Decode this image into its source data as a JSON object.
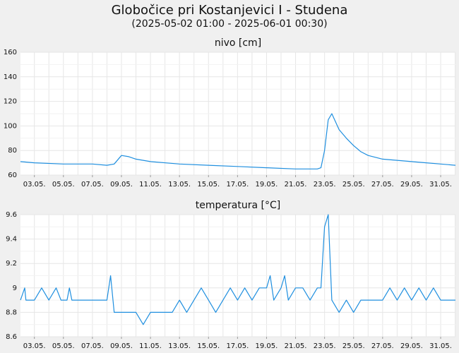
{
  "title": "Globočice pri Kostanjevici I - Studena",
  "subtitle": "(2025-05-02 01:00 - 2025-06-01 00:30)",
  "colors": {
    "series": "#1f8fdf",
    "plot_bg": "#ffffff",
    "page_bg": "#f0f0f0",
    "grid": "#e6e6e6"
  },
  "chart_data": [
    {
      "type": "line",
      "title": "nivo [cm]",
      "ylim": [
        60,
        160
      ],
      "yticks": [
        60,
        80,
        100,
        120,
        140,
        160
      ],
      "xticks": [
        "03.05.",
        "05.05.",
        "07.05.",
        "09.05.",
        "11.05.",
        "13.05.",
        "15.05.",
        "17.05.",
        "19.05.",
        "21.05.",
        "23.05.",
        "25.05.",
        "27.05.",
        "29.05.",
        "31.05."
      ],
      "xrange": [
        "2025-05-02 01:00",
        "2025-06-01 00:30"
      ],
      "grid": true,
      "x": [
        "2025-05-02 01:00",
        "2025-05-03 00:00",
        "2025-05-05 00:00",
        "2025-05-07 00:00",
        "2025-05-08 00:00",
        "2025-05-08 12:00",
        "2025-05-09 00:00",
        "2025-05-09 12:00",
        "2025-05-10 00:00",
        "2025-05-11 00:00",
        "2025-05-13 00:00",
        "2025-05-15 00:00",
        "2025-05-17 00:00",
        "2025-05-19 00:00",
        "2025-05-21 00:00",
        "2025-05-22 12:00",
        "2025-05-22 18:00",
        "2025-05-23 00:00",
        "2025-05-23 06:00",
        "2025-05-23 12:00",
        "2025-05-24 00:00",
        "2025-05-24 12:00",
        "2025-05-25 00:00",
        "2025-05-25 12:00",
        "2025-05-26 00:00",
        "2025-05-27 00:00",
        "2025-05-28 00:00",
        "2025-05-29 00:00",
        "2025-05-30 00:00",
        "2025-05-31 00:00",
        "2025-06-01 00:30"
      ],
      "values": [
        71,
        70,
        69,
        69,
        68,
        69,
        76,
        75,
        73,
        71,
        69,
        68,
        67,
        66,
        65,
        65,
        66,
        80,
        105,
        110,
        97,
        90,
        84,
        79,
        76,
        73,
        72,
        71,
        70,
        69,
        68
      ]
    },
    {
      "type": "line",
      "title": "temperatura [°C]",
      "ylim": [
        8.6,
        9.6
      ],
      "yticks": [
        8.6,
        8.8,
        9,
        9.2,
        9.4,
        9.6
      ],
      "yticklabels": [
        "8.6",
        "8.8",
        "9",
        "9.2",
        "9.4",
        "9.6"
      ],
      "xticks": [
        "03.05.",
        "05.05.",
        "07.05.",
        "09.05.",
        "11.05.",
        "13.05.",
        "15.05.",
        "17.05.",
        "19.05.",
        "21.05.",
        "23.05.",
        "25.05.",
        "27.05.",
        "29.05.",
        "31.05."
      ],
      "xrange": [
        "2025-05-02 01:00",
        "2025-06-01 00:30"
      ],
      "grid": true,
      "x": [
        "2025-05-02 01:00",
        "2025-05-02 08:00",
        "2025-05-02 10:00",
        "2025-05-03 00:00",
        "2025-05-03 12:00",
        "2025-05-04 00:00",
        "2025-05-04 12:00",
        "2025-05-04 20:00",
        "2025-05-05 06:00",
        "2025-05-05 10:00",
        "2025-05-05 14:00",
        "2025-05-06 00:00",
        "2025-05-06 12:00",
        "2025-05-08 00:00",
        "2025-05-08 06:00",
        "2025-05-08 10:00",
        "2025-05-08 12:00",
        "2025-05-09 00:00",
        "2025-05-10 00:00",
        "2025-05-10 12:00",
        "2025-05-11 00:00",
        "2025-05-12 00:00",
        "2025-05-12 12:00",
        "2025-05-13 00:00",
        "2025-05-13 12:00",
        "2025-05-14 00:00",
        "2025-05-14 12:00",
        "2025-05-15 00:00",
        "2025-05-15 12:00",
        "2025-05-16 00:00",
        "2025-05-16 12:00",
        "2025-05-17 00:00",
        "2025-05-17 12:00",
        "2025-05-18 00:00",
        "2025-05-18 12:00",
        "2025-05-19 00:00",
        "2025-05-19 06:00",
        "2025-05-19 12:00",
        "2025-05-20 00:00",
        "2025-05-20 06:00",
        "2025-05-20 12:00",
        "2025-05-21 00:00",
        "2025-05-21 12:00",
        "2025-05-22 00:00",
        "2025-05-22 12:00",
        "2025-05-22 18:00",
        "2025-05-23 00:00",
        "2025-05-23 06:00",
        "2025-05-23 12:00",
        "2025-05-24 00:00",
        "2025-05-24 12:00",
        "2025-05-25 00:00",
        "2025-05-25 12:00",
        "2025-05-26 00:00",
        "2025-05-27 00:00",
        "2025-05-27 12:00",
        "2025-05-28 00:00",
        "2025-05-28 12:00",
        "2025-05-29 00:00",
        "2025-05-29 12:00",
        "2025-05-30 00:00",
        "2025-05-30 12:00",
        "2025-05-31 00:00",
        "2025-06-01 00:30"
      ],
      "values": [
        8.9,
        9.0,
        8.9,
        8.9,
        9.0,
        8.9,
        9.0,
        8.9,
        8.9,
        9.0,
        8.9,
        8.9,
        8.9,
        8.9,
        9.1,
        8.9,
        8.8,
        8.8,
        8.8,
        8.7,
        8.8,
        8.8,
        8.8,
        8.9,
        8.8,
        8.9,
        9.0,
        8.9,
        8.8,
        8.9,
        9.0,
        8.9,
        9.0,
        8.9,
        9.0,
        9.0,
        9.1,
        8.9,
        9.0,
        9.1,
        8.9,
        9.0,
        9.0,
        8.9,
        9.0,
        9.0,
        9.5,
        9.6,
        8.9,
        8.8,
        8.9,
        8.8,
        8.9,
        8.9,
        8.9,
        9.0,
        8.9,
        9.0,
        8.9,
        9.0,
        8.9,
        9.0,
        8.9,
        8.9
      ]
    }
  ]
}
